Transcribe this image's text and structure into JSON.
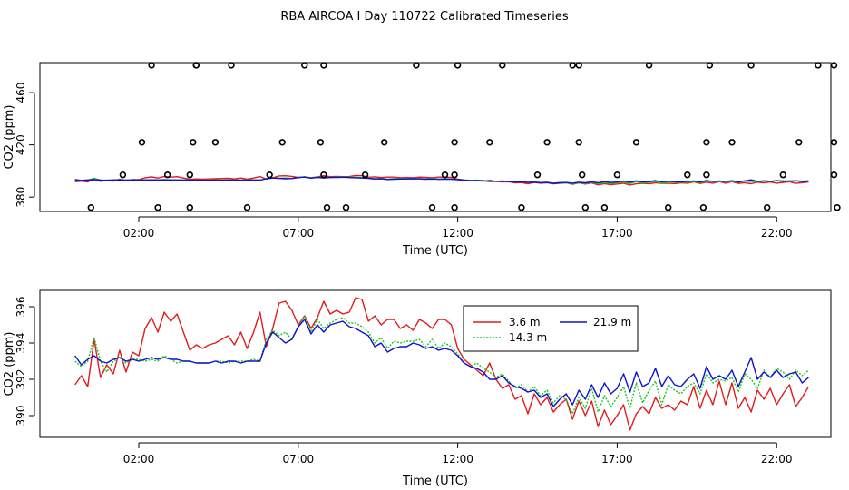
{
  "chart_data": [
    {
      "type": "scatter",
      "title": "RBA AIRCOA I  Day 110722  Calibrated Timeseries",
      "xlabel": "Time (UTC)",
      "ylabel": "CO2 (ppm)",
      "x_unit": "hours UTC",
      "xlim": [
        -1.1,
        23.7
      ],
      "ylim": [
        369,
        483
      ],
      "x_ticks": [
        "02:00",
        "07:00",
        "12:00",
        "17:00",
        "22:00"
      ],
      "y_ticks": [
        "380",
        "420",
        "460"
      ],
      "grid": false,
      "calibration_points": {
        "x": [
          0.5,
          1.5,
          2.1,
          2.4,
          2.6,
          2.9,
          3.6,
          3.6,
          3.7,
          3.8,
          3.8,
          4.4,
          4.9,
          5.4,
          6.1,
          6.5,
          7.2,
          7.7,
          7.8,
          7.8,
          7.9,
          8.5,
          9.1,
          9.7,
          10.7,
          11.2,
          11.6,
          11.9,
          11.9,
          11.9,
          12.0,
          13.0,
          13.4,
          14.0,
          14.5,
          14.8,
          15.6,
          15.8,
          15.8,
          15.9,
          16.0,
          16.6,
          17.0,
          17.6,
          18.0,
          18.6,
          19.2,
          19.7,
          19.8,
          19.8,
          19.9,
          20.6,
          21.2,
          21.7,
          22.2,
          22.7,
          23.3,
          23.8,
          23.8,
          23.8,
          23.9
        ],
        "y": [
          372,
          397,
          422,
          481,
          372,
          397,
          372,
          397,
          422,
          481,
          481,
          422,
          481,
          372,
          397,
          422,
          481,
          422,
          481,
          397,
          372,
          372,
          397,
          422,
          481,
          372,
          397,
          372,
          397,
          422,
          481,
          422,
          481,
          372,
          397,
          422,
          481,
          481,
          422,
          397,
          372,
          372,
          397,
          422,
          481,
          372,
          397,
          372,
          397,
          422,
          481,
          422,
          481,
          372,
          397,
          422,
          481,
          481,
          422,
          397,
          372
        ]
      },
      "series": [
        {
          "name": "3.6 m",
          "color": "#e31a1c",
          "ref": "panel2.3.6 m"
        },
        {
          "name": "14.3 m",
          "color": "#1ec61e",
          "ref": "panel2.14.3 m"
        },
        {
          "name": "21.9 m",
          "color": "#1010d0",
          "ref": "panel2.21.9 m"
        }
      ]
    },
    {
      "type": "line",
      "title": "",
      "xlabel": "Time (UTC)",
      "ylabel": "CO2 (ppm)",
      "x_unit": "hours UTC",
      "xlim": [
        -1.1,
        23.7
      ],
      "ylim": [
        388.8,
        396.9
      ],
      "x_ticks": [
        "02:00",
        "07:00",
        "12:00",
        "17:00",
        "22:00"
      ],
      "y_ticks": [
        "390",
        "392",
        "394",
        "396"
      ],
      "grid": false,
      "legend": {
        "placement": "top-center",
        "entries": [
          "3.6 m",
          "14.3 m",
          "21.9 m"
        ]
      },
      "series": [
        {
          "name": "3.6 m",
          "color": "#e31a1c",
          "x": [
            0.0,
            0.2,
            0.4,
            0.6,
            0.8,
            1.0,
            1.2,
            1.4,
            1.6,
            1.8,
            2.0,
            2.2,
            2.4,
            2.6,
            2.8,
            3.0,
            3.2,
            3.4,
            3.6,
            3.8,
            4.0,
            4.2,
            4.4,
            4.6,
            4.8,
            5.0,
            5.2,
            5.4,
            5.6,
            5.8,
            6.0,
            6.2,
            6.4,
            6.6,
            6.8,
            7.0,
            7.2,
            7.4,
            7.6,
            7.8,
            8.0,
            8.2,
            8.4,
            8.6,
            8.8,
            9.0,
            9.2,
            9.4,
            9.6,
            9.8,
            10.0,
            10.2,
            10.4,
            10.6,
            10.8,
            11.0,
            11.2,
            11.4,
            11.6,
            11.8,
            12.0,
            12.2,
            12.4,
            12.6,
            12.8,
            13.0,
            13.2,
            13.4,
            13.6,
            13.8,
            14.0,
            14.2,
            14.4,
            14.6,
            14.8,
            15.0,
            15.2,
            15.4,
            15.6,
            15.8,
            16.0,
            16.2,
            16.4,
            16.6,
            16.8,
            17.0,
            17.2,
            17.4,
            17.6,
            17.8,
            18.0,
            18.2,
            18.4,
            18.6,
            18.8,
            19.0,
            19.2,
            19.4,
            19.6,
            19.8,
            20.0,
            20.2,
            20.4,
            20.6,
            20.8,
            21.0,
            21.2,
            21.4,
            21.6,
            21.8,
            22.0,
            22.2,
            22.4,
            22.6,
            22.8,
            23.0
          ],
          "values": [
            391.7,
            392.2,
            391.6,
            394.2,
            392.1,
            392.8,
            392.3,
            393.6,
            392.4,
            393.5,
            393.3,
            394.8,
            395.4,
            394.6,
            395.7,
            395.2,
            395.6,
            394.6,
            393.6,
            393.9,
            393.7,
            393.9,
            394.0,
            394.2,
            394.4,
            393.9,
            394.6,
            393.7,
            394.6,
            395.7,
            393.8,
            394.8,
            396.2,
            396.3,
            395.8,
            395.0,
            395.5,
            394.8,
            395.4,
            396.3,
            395.6,
            395.8,
            395.6,
            395.7,
            396.5,
            396.4,
            395.2,
            395.5,
            395.0,
            395.3,
            395.3,
            394.8,
            395.0,
            394.7,
            395.3,
            395.1,
            394.8,
            395.3,
            395.3,
            395.0,
            393.7,
            393.1,
            392.8,
            392.5,
            392.2,
            392.9,
            392.0,
            391.5,
            391.7,
            390.9,
            391.1,
            390.1,
            391.2,
            390.6,
            391.0,
            390.2,
            390.6,
            390.9,
            389.8,
            390.8,
            390.0,
            390.8,
            389.4,
            390.3,
            389.5,
            390.0,
            390.6,
            389.2,
            390.1,
            390.5,
            390.1,
            391.0,
            390.4,
            390.6,
            390.3,
            390.8,
            390.6,
            391.6,
            390.4,
            391.4,
            390.6,
            391.9,
            390.6,
            391.8,
            390.4,
            391.0,
            390.2,
            391.4,
            390.9,
            391.5,
            390.6,
            391.2,
            391.7,
            390.5,
            391.0,
            391.6
          ]
        },
        {
          "name": "14.3 m",
          "color": "#1ec61e",
          "x": [
            0.0,
            0.2,
            0.4,
            0.6,
            0.8,
            1.0,
            1.2,
            1.4,
            1.6,
            1.8,
            2.0,
            2.2,
            2.4,
            2.6,
            2.8,
            3.0,
            3.2,
            3.4,
            3.6,
            3.8,
            4.0,
            4.2,
            4.4,
            4.6,
            4.8,
            5.0,
            5.2,
            5.4,
            5.6,
            5.8,
            6.0,
            6.2,
            6.4,
            6.6,
            6.8,
            7.0,
            7.2,
            7.4,
            7.6,
            7.8,
            8.0,
            8.2,
            8.4,
            8.6,
            8.8,
            9.0,
            9.2,
            9.4,
            9.6,
            9.8,
            10.0,
            10.2,
            10.4,
            10.6,
            10.8,
            11.0,
            11.2,
            11.4,
            11.6,
            11.8,
            12.0,
            12.2,
            12.4,
            12.6,
            12.8,
            13.0,
            13.2,
            13.4,
            13.6,
            13.8,
            14.0,
            14.2,
            14.4,
            14.6,
            14.8,
            15.0,
            15.2,
            15.4,
            15.6,
            15.8,
            16.0,
            16.2,
            16.4,
            16.6,
            16.8,
            17.0,
            17.2,
            17.4,
            17.6,
            17.8,
            18.0,
            18.2,
            18.4,
            18.6,
            18.8,
            19.0,
            19.2,
            19.4,
            19.6,
            19.8,
            20.0,
            20.2,
            20.4,
            20.6,
            20.8,
            21.0,
            21.2,
            21.4,
            21.6,
            21.8,
            22.0,
            22.2,
            22.4,
            22.6,
            22.8,
            23.0
          ],
          "values": [
            393.0,
            392.7,
            393.0,
            394.3,
            393.0,
            392.4,
            393.0,
            393.2,
            392.9,
            393.1,
            393.1,
            393.0,
            393.1,
            393.0,
            393.3,
            393.1,
            392.9,
            393.0,
            393.0,
            392.9,
            392.9,
            392.9,
            393.0,
            393.0,
            392.9,
            393.0,
            393.0,
            393.0,
            393.1,
            393.0,
            394.2,
            394.7,
            394.4,
            394.6,
            394.2,
            394.9,
            395.5,
            394.6,
            395.3,
            394.8,
            395.1,
            395.3,
            395.4,
            395.1,
            395.1,
            394.9,
            394.6,
            394.0,
            394.3,
            393.7,
            394.1,
            394.0,
            394.1,
            394.1,
            394.2,
            393.8,
            394.2,
            393.7,
            394.0,
            393.8,
            393.4,
            392.9,
            392.7,
            392.9,
            392.6,
            392.4,
            392.1,
            392.3,
            391.9,
            391.5,
            391.7,
            391.3,
            391.6,
            391.1,
            391.4,
            390.7,
            391.1,
            390.9,
            390.1,
            391.0,
            390.4,
            391.5,
            390.2,
            391.1,
            390.5,
            391.0,
            391.6,
            390.4,
            391.8,
            390.7,
            391.4,
            391.9,
            390.6,
            391.7,
            391.4,
            391.2,
            391.6,
            391.8,
            391.2,
            392.3,
            391.8,
            392.0,
            391.9,
            392.1,
            391.3,
            392.3,
            392.0,
            391.5,
            392.5,
            392.1,
            392.6,
            392.4,
            392.0,
            392.5,
            392.2,
            392.5
          ]
        },
        {
          "name": "21.9 m",
          "color": "#1010d0",
          "x": [
            0.0,
            0.2,
            0.4,
            0.6,
            0.8,
            1.0,
            1.2,
            1.4,
            1.6,
            1.8,
            2.0,
            2.2,
            2.4,
            2.6,
            2.8,
            3.0,
            3.2,
            3.4,
            3.6,
            3.8,
            4.0,
            4.2,
            4.4,
            4.6,
            4.8,
            5.0,
            5.2,
            5.4,
            5.6,
            5.8,
            6.0,
            6.2,
            6.4,
            6.6,
            6.8,
            7.0,
            7.2,
            7.4,
            7.6,
            7.8,
            8.0,
            8.2,
            8.4,
            8.6,
            8.8,
            9.0,
            9.2,
            9.4,
            9.6,
            9.8,
            10.0,
            10.2,
            10.4,
            10.6,
            10.8,
            11.0,
            11.2,
            11.4,
            11.6,
            11.8,
            12.0,
            12.2,
            12.4,
            12.6,
            12.8,
            13.0,
            13.2,
            13.4,
            13.6,
            13.8,
            14.0,
            14.2,
            14.4,
            14.6,
            14.8,
            15.0,
            15.2,
            15.4,
            15.6,
            15.8,
            16.0,
            16.2,
            16.4,
            16.6,
            16.8,
            17.0,
            17.2,
            17.4,
            17.6,
            17.8,
            18.0,
            18.2,
            18.4,
            18.6,
            18.8,
            19.0,
            19.2,
            19.4,
            19.6,
            19.8,
            20.0,
            20.2,
            20.4,
            20.6,
            20.8,
            21.0,
            21.2,
            21.4,
            21.6,
            21.8,
            22.0,
            22.2,
            22.4,
            22.6,
            22.8,
            23.0
          ],
          "values": [
            393.3,
            392.8,
            393.1,
            393.3,
            393.0,
            392.9,
            393.1,
            393.2,
            393.0,
            393.1,
            393.0,
            393.1,
            393.2,
            393.1,
            393.2,
            393.1,
            393.1,
            393.0,
            393.0,
            392.9,
            392.9,
            392.9,
            393.0,
            392.9,
            393.0,
            393.0,
            392.9,
            393.0,
            393.0,
            393.0,
            394.0,
            394.6,
            394.3,
            394.0,
            394.2,
            394.9,
            395.3,
            394.5,
            395.0,
            394.6,
            395.0,
            395.1,
            395.2,
            394.9,
            394.8,
            394.6,
            394.4,
            393.8,
            394.0,
            393.5,
            393.7,
            393.8,
            393.8,
            394.0,
            393.9,
            393.7,
            393.8,
            393.6,
            393.7,
            393.6,
            393.3,
            392.9,
            392.7,
            392.6,
            392.4,
            392.0,
            392.0,
            392.2,
            391.8,
            391.6,
            391.5,
            391.3,
            391.4,
            391.0,
            391.2,
            390.5,
            390.9,
            391.2,
            390.6,
            391.4,
            390.9,
            391.7,
            391.0,
            391.8,
            391.2,
            391.5,
            392.3,
            391.3,
            392.4,
            391.6,
            391.8,
            392.6,
            391.6,
            392.2,
            391.7,
            391.6,
            392.0,
            392.3,
            391.5,
            392.7,
            392.0,
            392.2,
            392.0,
            392.5,
            391.6,
            392.4,
            393.2,
            392.0,
            392.4,
            392.1,
            392.5,
            392.1,
            392.3,
            392.4,
            391.8,
            392.1
          ]
        }
      ]
    }
  ]
}
